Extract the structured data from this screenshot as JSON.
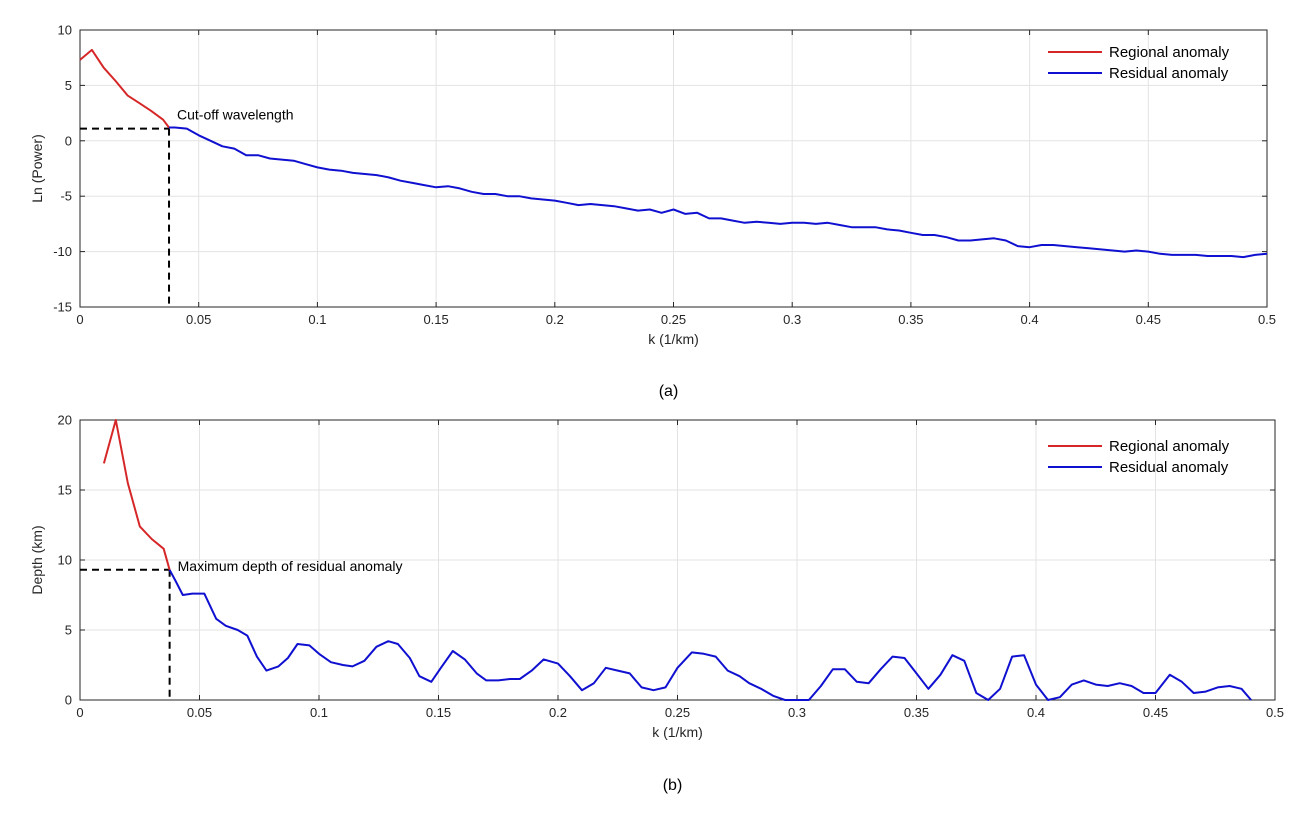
{
  "chart_data": [
    {
      "type": "line",
      "panel_label": "(a)",
      "xlabel": "k (1/km)",
      "ylabel": "Ln (Power)",
      "xlim": [
        0,
        0.5
      ],
      "ylim": [
        -15,
        10
      ],
      "xticks": [
        "0",
        "0.05",
        "0.1",
        "0.15",
        "0.2",
        "0.25",
        "0.3",
        "0.35",
        "0.4",
        "0.45",
        "0.5"
      ],
      "yticks": [
        "-15",
        "-10",
        "-5",
        "0",
        "5",
        "10"
      ],
      "grid": true,
      "legend_position": "top-right",
      "annotation": {
        "text": "Cut-off wavelength",
        "x": 0.0375,
        "y": 1.1
      },
      "series": [
        {
          "name": "Regional anomaly",
          "color": "#d62728",
          "x": [
            0,
            0.005,
            0.01,
            0.015,
            0.02,
            0.025,
            0.03,
            0.035,
            0.0375
          ],
          "y": [
            7.3,
            8.2,
            6.6,
            5.4,
            4.1,
            3.4,
            2.7,
            1.9,
            1.2
          ]
        },
        {
          "name": "Residual anomaly",
          "color": "#1010d0",
          "x": [
            0.0375,
            0.04,
            0.045,
            0.05,
            0.055,
            0.06,
            0.065,
            0.07,
            0.075,
            0.08,
            0.085,
            0.09,
            0.095,
            0.1,
            0.105,
            0.11,
            0.115,
            0.12,
            0.125,
            0.13,
            0.135,
            0.14,
            0.145,
            0.15,
            0.155,
            0.16,
            0.165,
            0.17,
            0.175,
            0.18,
            0.185,
            0.19,
            0.195,
            0.2,
            0.205,
            0.21,
            0.215,
            0.22,
            0.225,
            0.23,
            0.235,
            0.24,
            0.245,
            0.25,
            0.255,
            0.26,
            0.265,
            0.27,
            0.275,
            0.28,
            0.285,
            0.29,
            0.295,
            0.3,
            0.305,
            0.31,
            0.315,
            0.32,
            0.325,
            0.33,
            0.335,
            0.34,
            0.345,
            0.35,
            0.355,
            0.36,
            0.365,
            0.37,
            0.375,
            0.38,
            0.385,
            0.39,
            0.395,
            0.4,
            0.405,
            0.41,
            0.415,
            0.42,
            0.425,
            0.43,
            0.435,
            0.44,
            0.445,
            0.45,
            0.455,
            0.46,
            0.465,
            0.47,
            0.475,
            0.48,
            0.485,
            0.49,
            0.495,
            0.5
          ],
          "y": [
            1.2,
            1.2,
            1.1,
            0.5,
            0.0,
            -0.5,
            -0.7,
            -1.3,
            -1.3,
            -1.6,
            -1.7,
            -1.8,
            -2.1,
            -2.4,
            -2.6,
            -2.7,
            -2.9,
            -3.0,
            -3.1,
            -3.3,
            -3.6,
            -3.8,
            -4.0,
            -4.2,
            -4.1,
            -4.3,
            -4.6,
            -4.8,
            -4.8,
            -5.0,
            -5.0,
            -5.2,
            -5.3,
            -5.4,
            -5.6,
            -5.8,
            -5.7,
            -5.8,
            -5.9,
            -6.1,
            -6.3,
            -6.2,
            -6.5,
            -6.2,
            -6.6,
            -6.5,
            -7.0,
            -7.0,
            -7.2,
            -7.4,
            -7.3,
            -7.4,
            -7.5,
            -7.4,
            -7.4,
            -7.5,
            -7.4,
            -7.6,
            -7.8,
            -7.8,
            -7.8,
            -8.0,
            -8.1,
            -8.3,
            -8.5,
            -8.5,
            -8.7,
            -9.0,
            -9.0,
            -8.9,
            -8.8,
            -9.0,
            -9.5,
            -9.6,
            -9.4,
            -9.4,
            -9.5,
            -9.6,
            -9.7,
            -9.8,
            -9.9,
            -10.0,
            -9.9,
            -10.0,
            -10.2,
            -10.3,
            -10.3,
            -10.3,
            -10.4,
            -10.4,
            -10.4,
            -10.5,
            -10.3,
            -10.2
          ]
        }
      ]
    },
    {
      "type": "line",
      "panel_label": "(b)",
      "xlabel": "k (1/km)",
      "ylabel": "Depth (km)",
      "xlim": [
        0,
        0.5
      ],
      "ylim": [
        0,
        20
      ],
      "xticks": [
        "0",
        "0.05",
        "0.1",
        "0.15",
        "0.2",
        "0.25",
        "0.3",
        "0.35",
        "0.4",
        "0.45",
        "0.5"
      ],
      "yticks": [
        "0",
        "5",
        "10",
        "15",
        "20"
      ],
      "grid": true,
      "legend_position": "top-right",
      "annotation": {
        "text": "Maximum depth of residual anomaly",
        "x": 0.0375,
        "y": 9.3
      },
      "series": [
        {
          "name": "Regional anomaly",
          "color": "#d62728",
          "x": [
            0.01,
            0.015,
            0.02,
            0.025,
            0.03,
            0.035,
            0.0375
          ],
          "y": [
            16.9,
            20.0,
            15.5,
            12.4,
            11.5,
            10.8,
            9.3
          ]
        },
        {
          "name": "Residual anomaly",
          "color": "#1010d0",
          "x": [
            0.0375,
            0.04,
            0.043,
            0.047,
            0.052,
            0.057,
            0.061,
            0.066,
            0.07,
            0.074,
            0.078,
            0.083,
            0.087,
            0.091,
            0.096,
            0.1,
            0.105,
            0.11,
            0.114,
            0.119,
            0.124,
            0.129,
            0.133,
            0.138,
            0.142,
            0.147,
            0.151,
            0.156,
            0.161,
            0.166,
            0.17,
            0.175,
            0.18,
            0.184,
            0.189,
            0.194,
            0.2,
            0.205,
            0.21,
            0.215,
            0.22,
            0.225,
            0.23,
            0.235,
            0.24,
            0.245,
            0.25,
            0.256,
            0.261,
            0.266,
            0.271,
            0.276,
            0.28,
            0.285,
            0.29,
            0.295,
            0.3,
            0.305,
            0.31,
            0.315,
            0.32,
            0.325,
            0.33,
            0.335,
            0.34,
            0.345,
            0.35,
            0.355,
            0.36,
            0.365,
            0.37,
            0.375,
            0.38,
            0.385,
            0.39,
            0.395,
            0.4,
            0.405,
            0.41,
            0.415,
            0.42,
            0.425,
            0.43,
            0.435,
            0.44,
            0.445,
            0.45,
            0.456,
            0.461,
            0.466,
            0.471,
            0.476,
            0.481,
            0.486,
            0.49
          ],
          "y": [
            9.3,
            8.5,
            7.5,
            7.6,
            7.6,
            5.8,
            5.3,
            5.0,
            4.6,
            3.1,
            2.1,
            2.4,
            3.0,
            4.0,
            3.9,
            3.3,
            2.7,
            2.5,
            2.4,
            2.8,
            3.8,
            4.2,
            4.0,
            3.0,
            1.7,
            1.3,
            2.3,
            3.5,
            2.9,
            1.9,
            1.4,
            1.4,
            1.5,
            1.5,
            2.1,
            2.9,
            2.6,
            1.7,
            0.7,
            1.2,
            2.3,
            2.1,
            1.9,
            0.9,
            0.7,
            0.9,
            2.3,
            3.4,
            3.3,
            3.1,
            2.1,
            1.7,
            1.2,
            0.8,
            0.3,
            0.0,
            0.0,
            0.0,
            1.0,
            2.2,
            2.2,
            1.3,
            1.2,
            2.2,
            3.1,
            3.0,
            1.9,
            0.8,
            1.8,
            3.2,
            2.8,
            0.5,
            0.0,
            0.8,
            3.1,
            3.2,
            1.1,
            0.0,
            0.2,
            1.1,
            1.4,
            1.1,
            1.0,
            1.2,
            1.0,
            0.5,
            0.5,
            1.8,
            1.3,
            0.5,
            0.6,
            0.9,
            1.0,
            0.8,
            0.0
          ]
        }
      ]
    }
  ]
}
